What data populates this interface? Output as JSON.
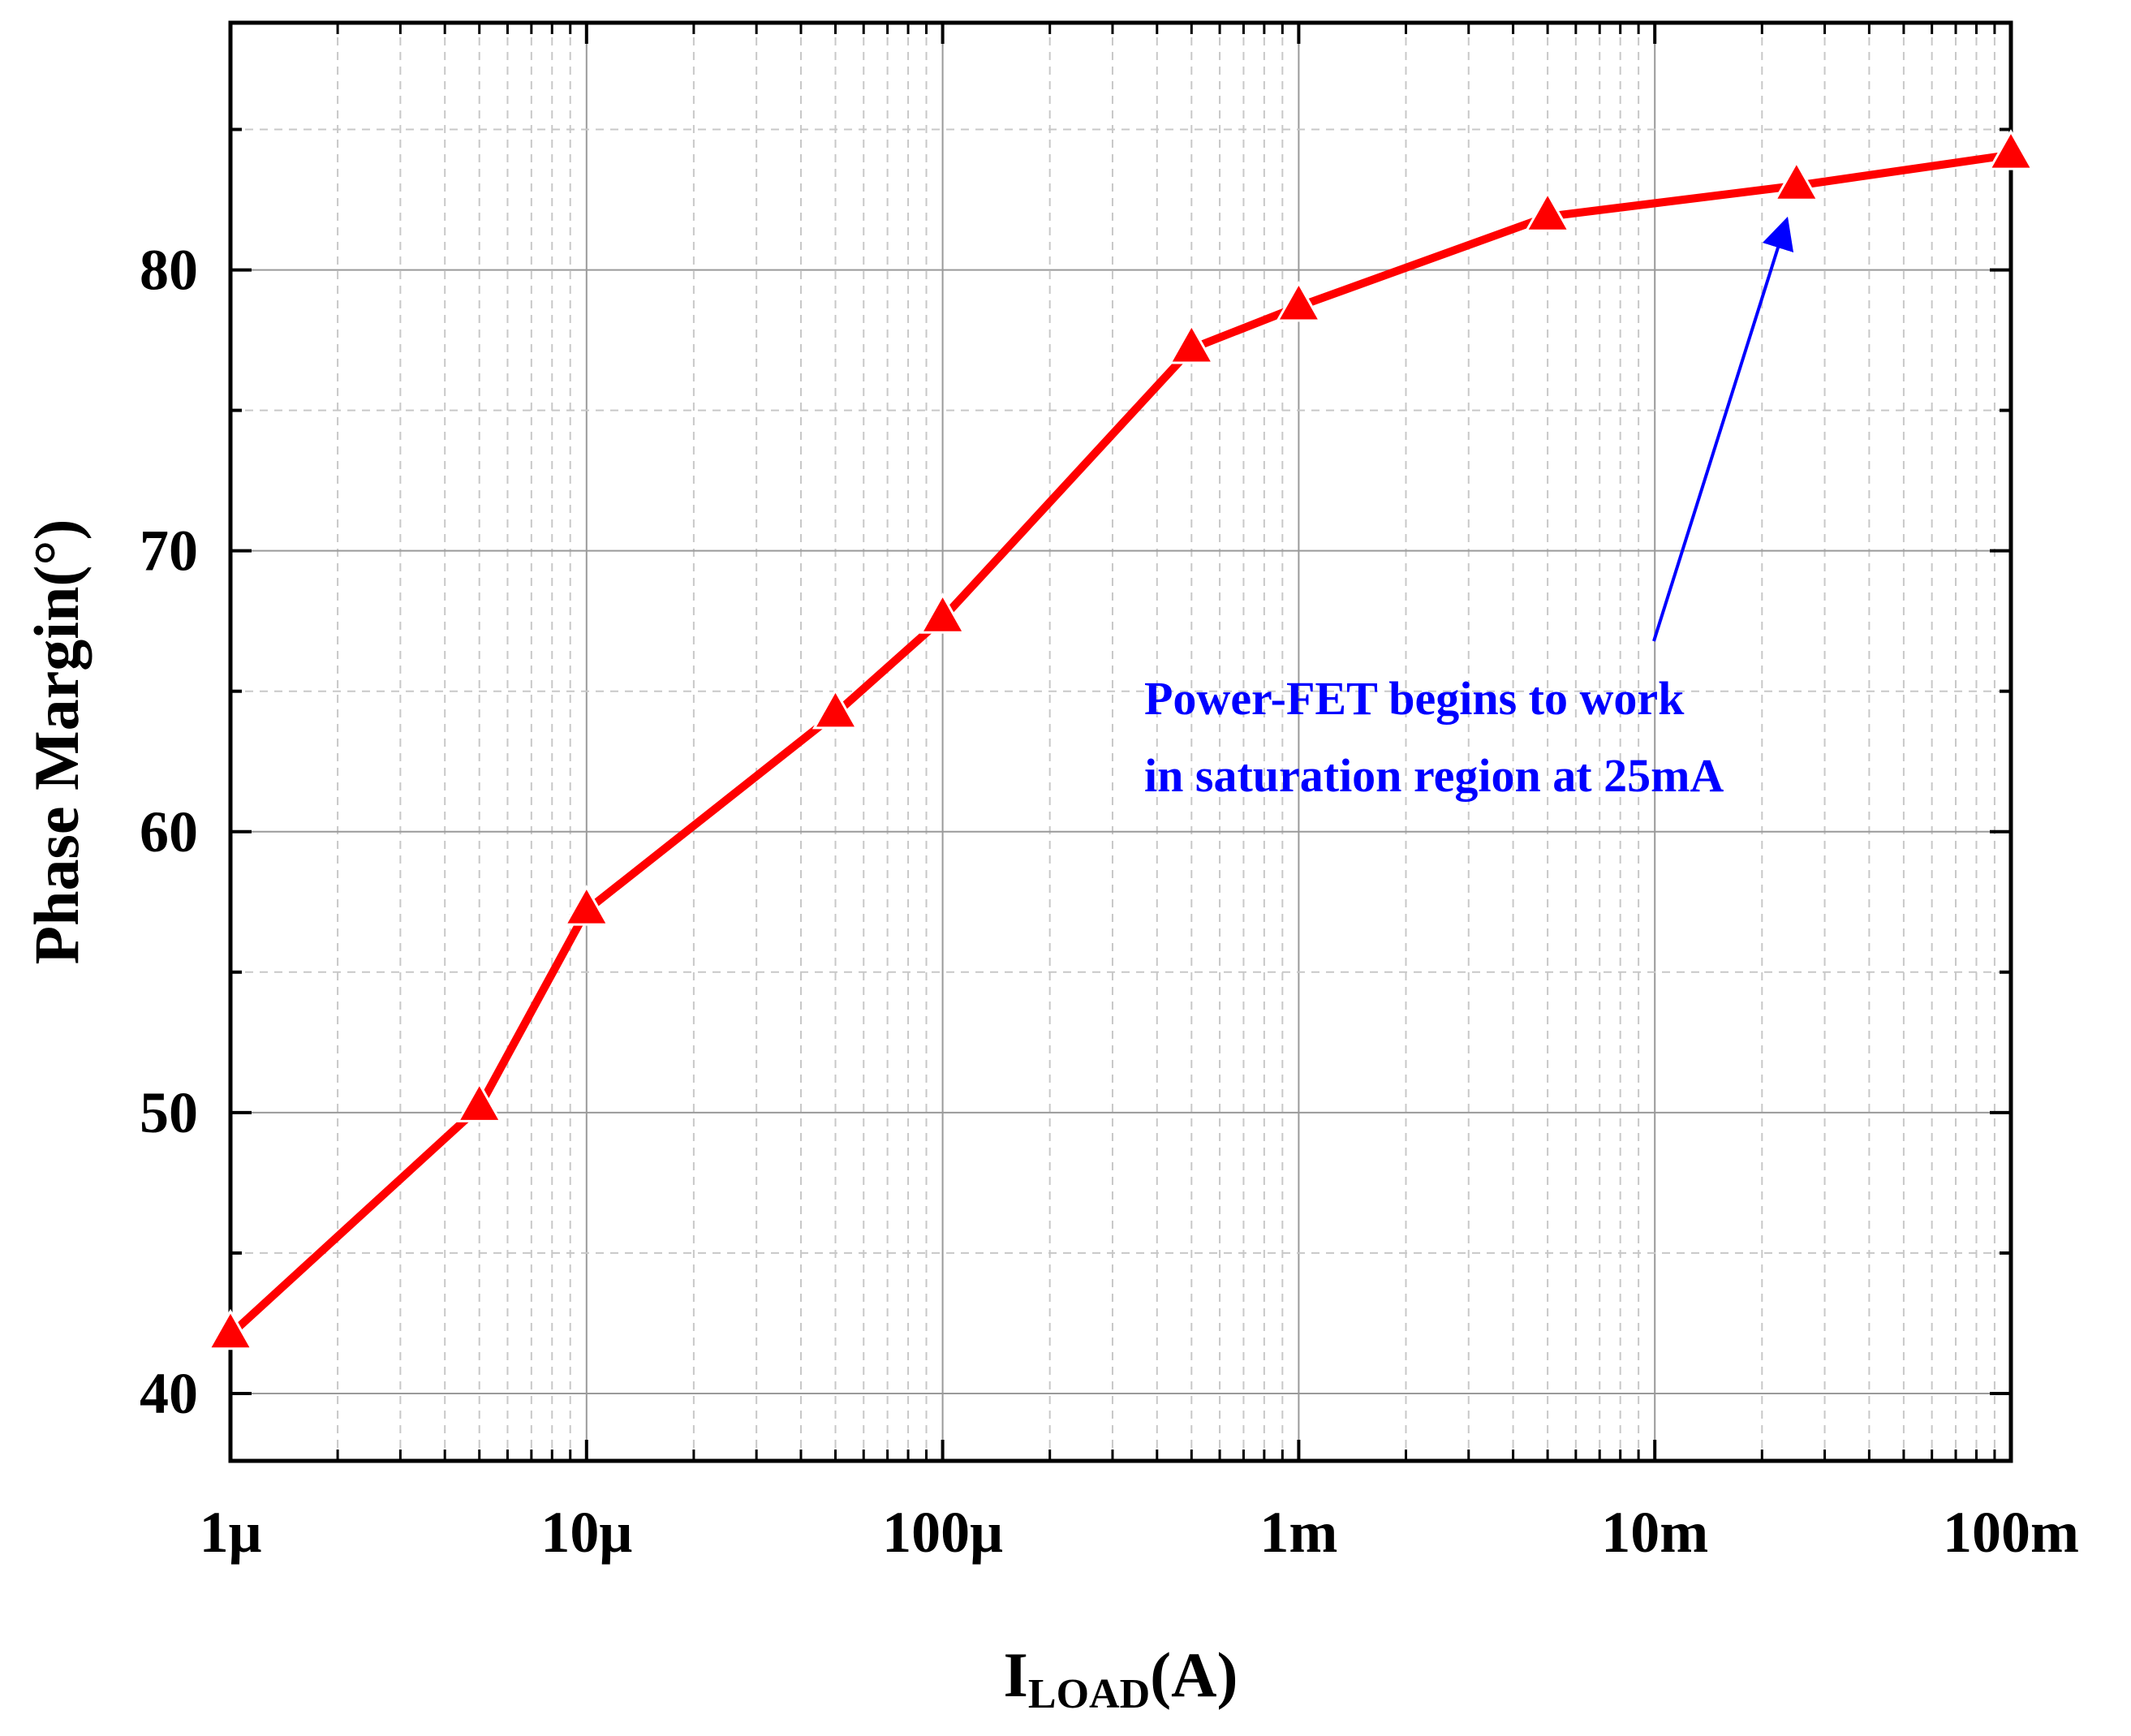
{
  "chart_data": {
    "type": "line",
    "title": "",
    "xlabel_main": "I",
    "xlabel_sub": "LOAD",
    "xlabel_unit": "(A)",
    "ylabel": "Phase Margin(°)",
    "xscale": "log",
    "xlim": [
      1e-06,
      0.1
    ],
    "ylim": [
      37.6,
      88.8
    ],
    "grid": true,
    "x_ticks": [
      {
        "value": 1e-06,
        "label": "1μ"
      },
      {
        "value": 1e-05,
        "label": "10μ"
      },
      {
        "value": 0.0001,
        "label": "100μ"
      },
      {
        "value": 0.001,
        "label": "1m"
      },
      {
        "value": 0.01,
        "label": "10m"
      },
      {
        "value": 0.1,
        "label": "100m"
      }
    ],
    "y_ticks": [
      {
        "value": 40,
        "label": "40"
      },
      {
        "value": 50,
        "label": "50"
      },
      {
        "value": 60,
        "label": "60"
      },
      {
        "value": 70,
        "label": "70"
      },
      {
        "value": 80,
        "label": "80"
      }
    ],
    "series": [
      {
        "color": "#ff0000",
        "marker": "triangle",
        "x": [
          1e-06,
          5e-06,
          1e-05,
          5e-05,
          0.0001,
          0.0005,
          0.001,
          0.005,
          0.025,
          0.1
        ],
        "values": [
          42.1,
          50.2,
          57.2,
          64.2,
          67.6,
          77.2,
          78.7,
          81.9,
          83.0,
          84.1
        ]
      }
    ],
    "annotation": {
      "lines": [
        "Power-FET begins to work",
        "in saturation region at 25mA"
      ],
      "color": "#0000ff",
      "arrow_target": {
        "x": 0.025,
        "y": 83.0
      }
    }
  }
}
